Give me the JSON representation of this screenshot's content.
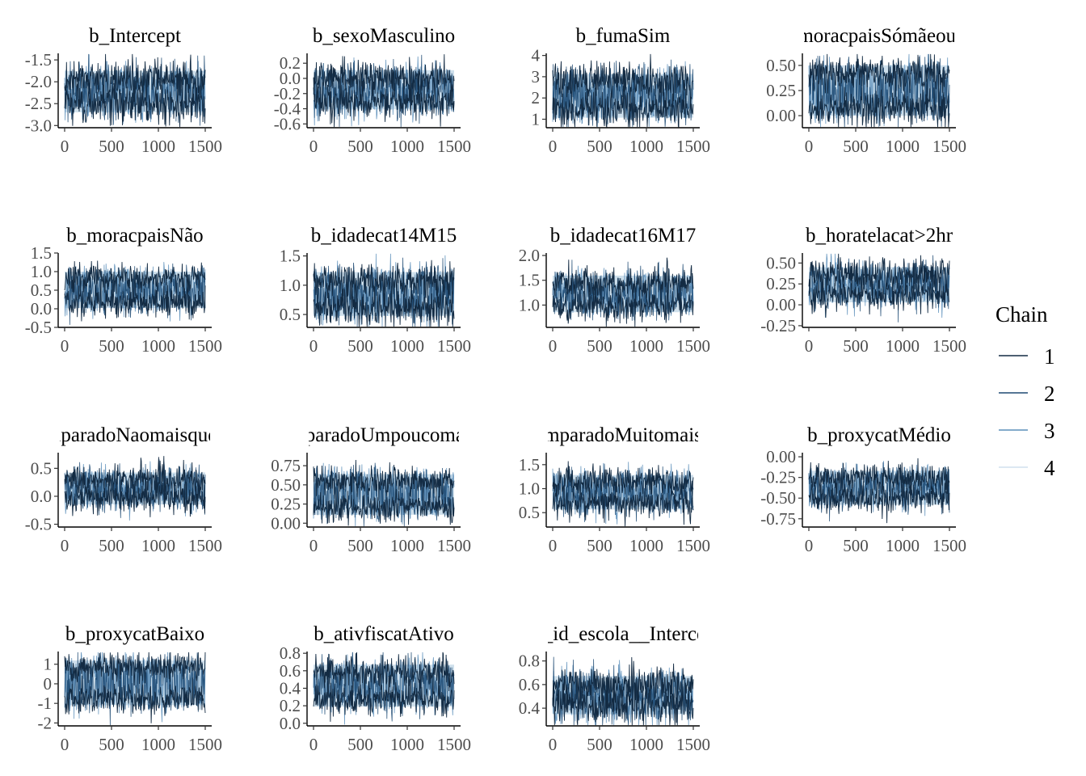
{
  "chart_data": {
    "type": "line",
    "x_range": [
      0,
      1500
    ],
    "x_ticks": [
      0,
      500,
      1000,
      1500
    ],
    "legend": {
      "title": "Chain",
      "placement": "right",
      "entries": [
        {
          "label": "1",
          "color": "#132b43"
        },
        {
          "label": "2",
          "color": "#1e4a73"
        },
        {
          "label": "3",
          "color": "#5c8fba"
        },
        {
          "label": "4",
          "color": "#d0e1ee"
        }
      ]
    },
    "band_color": "#cfe0ec",
    "panels": [
      {
        "title": "b_Intercept",
        "ylim": [
          -3.05,
          -1.35
        ],
        "yticks": [
          -3.0,
          -2.5,
          -2.0,
          -1.5
        ],
        "ytick_labels": [
          "-3.0",
          "-2.5",
          "-2.0",
          "-1.5"
        ],
        "mode_low": -2.5,
        "mode_high": -1.95,
        "spread": 0.22
      },
      {
        "title": "b_sexoMasculino",
        "ylim": [
          -0.65,
          0.33
        ],
        "yticks": [
          -0.6,
          -0.4,
          -0.2,
          0.0,
          0.2
        ],
        "ytick_labels": [
          "-0.6",
          "-0.4",
          "-0.2",
          "0.0",
          "0.2"
        ],
        "mode_low": -0.3,
        "mode_high": 0.0,
        "spread": 0.12
      },
      {
        "title": "b_fumaSim",
        "ylim": [
          0.6,
          4.1
        ],
        "yticks": [
          1,
          2,
          3,
          4
        ],
        "ytick_labels": [
          "1",
          "2",
          "3",
          "4"
        ],
        "mode_low": 1.45,
        "mode_high": 2.75,
        "spread": 0.42
      },
      {
        "title": "b_moracpaisSómãeoupai",
        "ylim": [
          -0.12,
          0.62
        ],
        "yticks": [
          0.0,
          0.25,
          0.5
        ],
        "ytick_labels": [
          "0.00",
          "0.25",
          "0.50"
        ],
        "mode_low": 0.08,
        "mode_high": 0.42,
        "spread": 0.09
      },
      {
        "title": "b_moracpaisNão",
        "ylim": [
          -0.5,
          1.5
        ],
        "yticks": [
          -0.5,
          0.0,
          0.5,
          1.0,
          1.5
        ],
        "ytick_labels": [
          "-0.5",
          "0.0",
          "0.5",
          "1.0",
          "1.5"
        ],
        "mode_low": 0.2,
        "mode_high": 0.82,
        "spread": 0.2
      },
      {
        "title": "b_idadecat14M15",
        "ylim": [
          0.28,
          1.55
        ],
        "yticks": [
          0.5,
          1.0,
          1.5
        ],
        "ytick_labels": [
          "0.5",
          "1.0",
          "1.5"
        ],
        "mode_low": 0.62,
        "mode_high": 1.08,
        "spread": 0.16
      },
      {
        "title": "b_idadecat16M17",
        "ylim": [
          0.55,
          2.05
        ],
        "yticks": [
          1.0,
          1.5,
          2.0
        ],
        "ytick_labels": [
          "1.0",
          "1.5",
          "2.0"
        ],
        "mode_low": 1.0,
        "mode_high": 1.45,
        "spread": 0.16
      },
      {
        "title": "b_horatelacat>2hr",
        "ylim": [
          -0.27,
          0.62
        ],
        "yticks": [
          -0.25,
          0.0,
          0.25,
          0.5
        ],
        "ytick_labels": [
          "-0.25",
          "0.00",
          "0.25",
          "0.50"
        ],
        "mode_low": 0.12,
        "mode_high": 0.36,
        "spread": 0.1
      },
      {
        "title": "b_amparadoNaomaisqueduas",
        "ylim": [
          -0.55,
          0.78
        ],
        "yticks": [
          -0.5,
          0.0,
          0.5
        ],
        "ytick_labels": [
          "-0.5",
          "0.0",
          "0.5"
        ],
        "mode_low": -0.02,
        "mode_high": 0.3,
        "spread": 0.14
      },
      {
        "title": "b_amparadoUmpoucomaisque",
        "ylim": [
          -0.05,
          0.92
        ],
        "yticks": [
          0.0,
          0.25,
          0.5,
          0.75
        ],
        "ytick_labels": [
          "0.00",
          "0.25",
          "0.50",
          "0.75"
        ],
        "mode_low": 0.2,
        "mode_high": 0.55,
        "spread": 0.1
      },
      {
        "title": "b_amparadoMuitomaisque",
        "ylim": [
          0.2,
          1.75
        ],
        "yticks": [
          0.5,
          1.0,
          1.5
        ],
        "ytick_labels": [
          "0.5",
          "1.0",
          "1.5"
        ],
        "mode_low": 0.7,
        "mode_high": 1.15,
        "spread": 0.15
      },
      {
        "title": "b_proxycatMédio",
        "ylim": [
          -0.85,
          0.05
        ],
        "yticks": [
          -0.75,
          -0.5,
          -0.25,
          0.0
        ],
        "ytick_labels": [
          "-0.75",
          "-0.50",
          "-0.25",
          "0.00"
        ],
        "mode_low": -0.5,
        "mode_high": -0.25,
        "spread": 0.09
      },
      {
        "title": "b_proxycatBaixo",
        "ylim": [
          -2.15,
          1.65
        ],
        "yticks": [
          -2,
          -1,
          0,
          1
        ],
        "ytick_labels": [
          "-2",
          "-1",
          "0",
          "1"
        ],
        "mode_low": -0.75,
        "mode_high": 0.85,
        "spread": 0.38
      },
      {
        "title": "b_ativfiscatAtivo",
        "ylim": [
          -0.03,
          0.82
        ],
        "yticks": [
          0.0,
          0.2,
          0.4,
          0.6,
          0.8
        ],
        "ytick_labels": [
          "0.0",
          "0.2",
          "0.4",
          "0.6",
          "0.8"
        ],
        "mode_low": 0.28,
        "mode_high": 0.58,
        "spread": 0.1
      },
      {
        "title": "sd_id_escola__Intercept",
        "ylim": [
          0.25,
          0.88
        ],
        "yticks": [
          0.4,
          0.6,
          0.8
        ],
        "ytick_labels": [
          "0.4",
          "0.6",
          "0.8"
        ],
        "mode_low": 0.42,
        "mode_high": 0.6,
        "spread": 0.08
      }
    ]
  }
}
